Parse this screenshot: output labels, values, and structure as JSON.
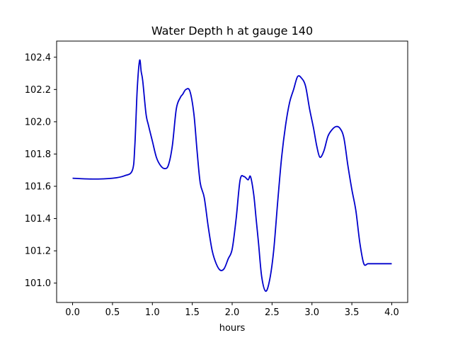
{
  "chart_data": {
    "type": "line",
    "title": "Water Depth h at gauge 140",
    "xlabel": "hours",
    "ylabel": "",
    "xlim": [
      -0.2,
      4.2
    ],
    "ylim": [
      100.88,
      102.5
    ],
    "xticks": [
      0.0,
      0.5,
      1.0,
      1.5,
      2.0,
      2.5,
      3.0,
      3.5,
      4.0
    ],
    "xtick_labels": [
      "0.0",
      "0.5",
      "1.0",
      "1.5",
      "2.0",
      "2.5",
      "3.0",
      "3.5",
      "4.0"
    ],
    "yticks": [
      101.0,
      101.2,
      101.4,
      101.6,
      101.8,
      102.0,
      102.2,
      102.4
    ],
    "ytick_labels": [
      "101.0",
      "101.2",
      "101.4",
      "101.6",
      "101.8",
      "102.0",
      "102.2",
      "102.4"
    ],
    "grid": false,
    "series": [
      {
        "color": "#0000cc",
        "x": [
          0.0,
          0.25,
          0.5,
          0.65,
          0.75,
          0.78,
          0.81,
          0.84,
          0.86,
          0.88,
          0.92,
          0.95,
          1.0,
          1.05,
          1.1,
          1.15,
          1.2,
          1.25,
          1.3,
          1.35,
          1.38,
          1.42,
          1.47,
          1.52,
          1.56,
          1.6,
          1.65,
          1.7,
          1.75,
          1.8,
          1.85,
          1.9,
          1.95,
          2.0,
          2.05,
          2.1,
          2.15,
          2.2,
          2.23,
          2.27,
          2.3,
          2.33,
          2.37,
          2.42,
          2.47,
          2.52,
          2.57,
          2.62,
          2.67,
          2.72,
          2.77,
          2.82,
          2.87,
          2.92,
          2.97,
          3.02,
          3.06,
          3.1,
          3.15,
          3.2,
          3.25,
          3.3,
          3.35,
          3.4,
          3.45,
          3.5,
          3.55,
          3.6,
          3.65,
          3.7,
          3.75,
          3.8,
          3.85,
          3.9,
          3.95,
          4.0
        ],
        "y": [
          101.65,
          101.645,
          101.65,
          101.665,
          101.7,
          101.85,
          102.2,
          102.38,
          102.31,
          102.25,
          102.05,
          101.98,
          101.88,
          101.78,
          101.73,
          101.71,
          101.73,
          101.85,
          102.08,
          102.15,
          102.17,
          102.2,
          102.19,
          102.05,
          101.82,
          101.62,
          101.53,
          101.35,
          101.2,
          101.12,
          101.08,
          101.09,
          101.15,
          101.21,
          101.4,
          101.64,
          101.66,
          101.64,
          101.66,
          101.55,
          101.4,
          101.25,
          101.04,
          100.95,
          101.02,
          101.2,
          101.5,
          101.78,
          101.98,
          102.12,
          102.2,
          102.28,
          102.27,
          102.22,
          102.08,
          101.96,
          101.85,
          101.78,
          101.82,
          101.91,
          101.95,
          101.97,
          101.96,
          101.9,
          101.73,
          101.58,
          101.45,
          101.25,
          101.12,
          101.12,
          101.12,
          101.12,
          101.12,
          101.12,
          101.12,
          101.12
        ]
      }
    ]
  }
}
